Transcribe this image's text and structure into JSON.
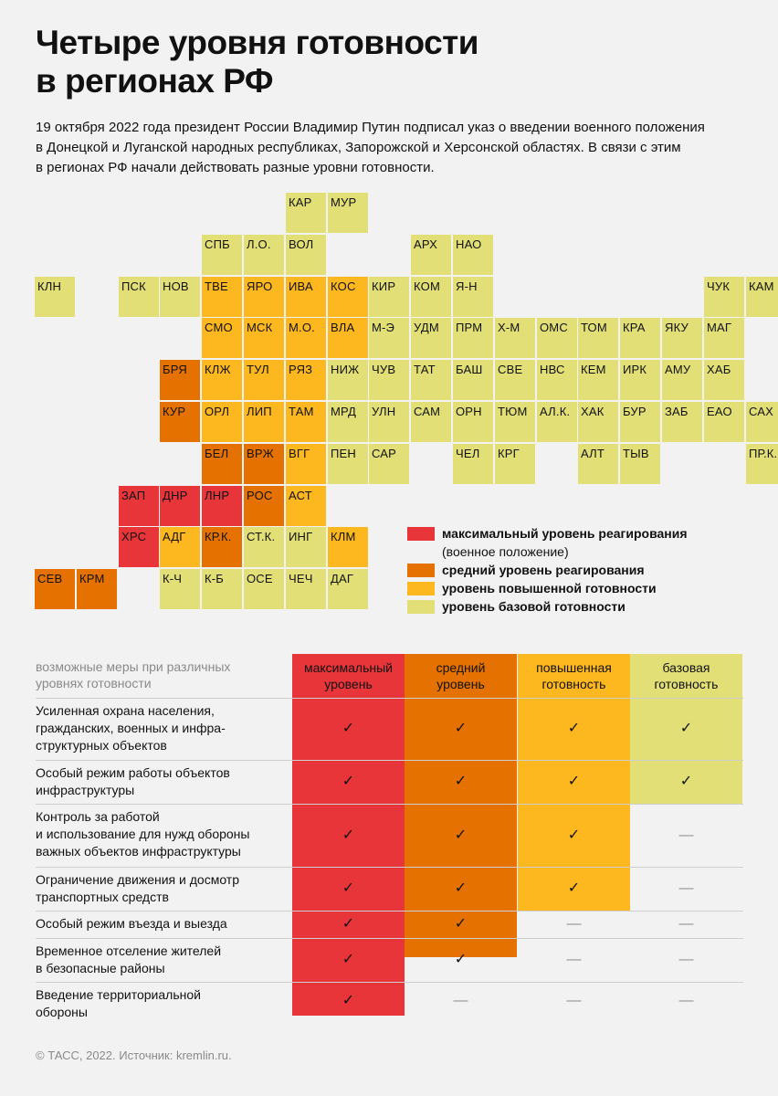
{
  "title": [
    "Четыре уровня готовности",
    "в регионах РФ"
  ],
  "intro": [
    "19 октября 2022 года президент России Владимир Путин подписал указ о введении военного положения",
    "в Донецкой и Луганской народных республиках, Запорожской и Херсонской областях. В связи с этим",
    "в регионах РФ начали действовать разные уровни готовности."
  ],
  "colors": {
    "max": "#e8353a",
    "mid": "#e57200",
    "high": "#fdb71f",
    "base": "#e2df76"
  },
  "map_rows": [
    [
      "",
      "",
      "",
      "",
      "",
      "",
      "КАР:base",
      "МУР:base"
    ],
    [
      "",
      "",
      "",
      "",
      "СПБ:base",
      "Л.О.:base",
      "ВОЛ:base",
      "",
      "",
      "АРХ:base",
      "НАО:base"
    ],
    [
      "КЛН:base",
      "",
      "ПСК:base",
      "НОВ:base",
      "ТВЕ:high",
      "ЯРО:high",
      "ИВА:high",
      "КОС:high",
      "КИР:base",
      "КОМ:base",
      "Я-Н:base",
      "",
      "",
      "",
      "",
      "",
      "ЧУК:base",
      "КАМ:base"
    ],
    [
      "",
      "",
      "",
      "",
      "СМО:high",
      "МСК:high",
      "М.О.:high",
      "ВЛА:high",
      "М-Э:base",
      "УДМ:base",
      "ПРМ:base",
      "Х-М:base",
      "ОМС:base",
      "ТОМ:base",
      "КРА:base",
      "ЯКУ:base",
      "МАГ:base"
    ],
    [
      "",
      "",
      "",
      "БРЯ:mid",
      "КЛЖ:high",
      "ТУЛ:high",
      "РЯЗ:high",
      "НИЖ:base",
      "ЧУВ:base",
      "ТАТ:base",
      "БАШ:base",
      "СВЕ:base",
      "НВС:base",
      "КЕМ:base",
      "ИРК:base",
      "АМУ:base",
      "ХАБ:base"
    ],
    [
      "",
      "",
      "",
      "КУР:mid",
      "ОРЛ:high",
      "ЛИП:high",
      "ТАМ:high",
      "МРД:base",
      "УЛН:base",
      "САМ:base",
      "ОРН:base",
      "ТЮМ:base",
      "АЛ.К.:base",
      "ХАК:base",
      "БУР:base",
      "ЗАБ:base",
      "ЕАО:base",
      "САХ:base"
    ],
    [
      "",
      "",
      "",
      "",
      "БЕЛ:mid",
      "ВРЖ:mid",
      "ВГГ:high",
      "ПЕН:base",
      "САР:base",
      "",
      "ЧЕЛ:base",
      "КРГ:base",
      "",
      "АЛТ:base",
      "ТЫВ:base",
      "",
      "",
      "ПР.К.:base"
    ],
    [
      "",
      "",
      "ЗАП:max",
      "ДНР:max",
      "ЛНР:max",
      "РОС:mid",
      "АСТ:high"
    ],
    [
      "",
      "",
      "ХРС:max",
      "АДГ:high",
      "КР.К.:mid",
      "СТ.К.:base",
      "ИНГ:base",
      "КЛМ:high"
    ],
    [
      "СЕВ:mid",
      "КРМ:mid",
      "",
      "К-Ч:base",
      "К-Б:base",
      "ОСЕ:base",
      "ЧЕЧ:base",
      "ДАГ:base"
    ]
  ],
  "legend": [
    {
      "level": "max",
      "label": "максимальный уровень реагирования",
      "sub": "(военное положение)"
    },
    {
      "level": "mid",
      "label": "средний уровень реагирования"
    },
    {
      "level": "high",
      "label": "уровень повышенной готовности"
    },
    {
      "level": "base",
      "label": "уровень базовой готовности"
    }
  ],
  "table": {
    "label": [
      "возможные меры при различных",
      "уровнях готовности"
    ],
    "columns": [
      {
        "level": "max",
        "label": [
          "максимальный",
          "уровень"
        ]
      },
      {
        "level": "mid",
        "label": [
          "средний",
          "уровень"
        ]
      },
      {
        "level": "high",
        "label": [
          "повышенная",
          "готовность"
        ]
      },
      {
        "level": "base",
        "label": [
          "базовая",
          "готовность"
        ]
      }
    ],
    "check": "✓",
    "dash": "—",
    "rows": [
      {
        "label": [
          "Усиленная охрана населения,",
          "гражданских, военных и инфра-",
          "структурных объектов"
        ],
        "marks": [
          1,
          1,
          1,
          1
        ]
      },
      {
        "label": [
          "Особый режим работы объектов",
          "инфраструктуры"
        ],
        "marks": [
          1,
          1,
          1,
          1
        ]
      },
      {
        "label": [
          "Контроль за работой",
          "и использование для нужд обороны",
          "важных объектов инфраструктуры"
        ],
        "marks": [
          1,
          1,
          1,
          0
        ]
      },
      {
        "label": [
          "Ограничение движения и досмотр",
          "транспортных средств"
        ],
        "marks": [
          1,
          1,
          1,
          0
        ]
      },
      {
        "label": [
          "Особый режим въезда и выезда"
        ],
        "marks": [
          1,
          1,
          0,
          0
        ]
      },
      {
        "label": [
          "Временное отселение жителей",
          "в безопасные районы"
        ],
        "marks": [
          1,
          1,
          0,
          0
        ]
      },
      {
        "label": [
          "Введение территориальной",
          "обороны"
        ],
        "marks": [
          1,
          0,
          0,
          0
        ]
      }
    ]
  },
  "footer": "© ТАСС, 2022. Источник: kremlin.ru."
}
